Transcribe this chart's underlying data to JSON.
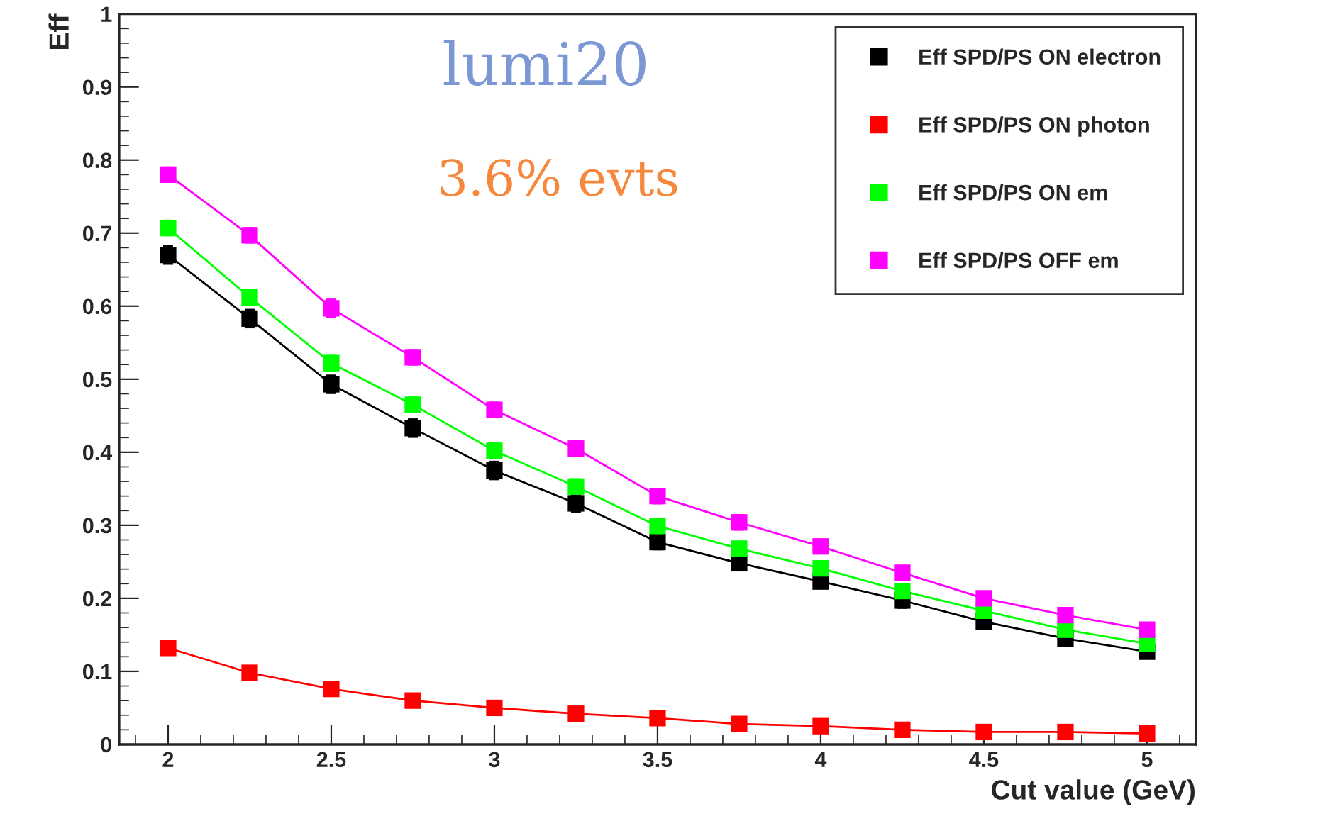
{
  "chart_data": {
    "type": "line",
    "xlabel": "Cut value (GeV)",
    "ylabel": "Eff",
    "x": [
      2,
      2.25,
      2.5,
      2.75,
      3,
      3.25,
      3.5,
      3.75,
      4,
      4.25,
      4.5,
      4.75,
      5
    ],
    "series": [
      {
        "name": "Eff SPD/PS ON electron",
        "color": "#000000",
        "values": [
          0.67,
          0.583,
          0.493,
          0.433,
          0.375,
          0.33,
          0.277,
          0.248,
          0.223,
          0.197,
          0.168,
          0.145,
          0.127
        ],
        "errors": [
          0.012,
          0.012,
          0.012,
          0.012,
          0.012,
          0.012,
          0.01,
          0.008,
          0.008,
          0.01,
          0.006,
          0.005,
          0.005
        ]
      },
      {
        "name": "Eff SPD/PS ON photon",
        "color": "#ff0000",
        "values": [
          0.132,
          0.098,
          0.076,
          0.06,
          0.05,
          0.042,
          0.036,
          0.028,
          0.025,
          0.02,
          0.017,
          0.017,
          0.015
        ]
      },
      {
        "name": "Eff SPD/PS ON em",
        "color": "#00ff00",
        "values": [
          0.707,
          0.612,
          0.522,
          0.465,
          0.402,
          0.353,
          0.299,
          0.268,
          0.241,
          0.21,
          0.183,
          0.157,
          0.138
        ],
        "errors": [
          0.01,
          0.01,
          0.01,
          0.01,
          0.01,
          0.01,
          0.008,
          0.008,
          0.008,
          0.008,
          0.006,
          0.005,
          0.005
        ]
      },
      {
        "name": "Eff SPD/PS OFF em",
        "color": "#ff00ff",
        "values": [
          0.78,
          0.697,
          0.597,
          0.53,
          0.458,
          0.405,
          0.34,
          0.304,
          0.271,
          0.235,
          0.2,
          0.177,
          0.157
        ],
        "errors": [
          0.01,
          0.01,
          0.012,
          0.01,
          0.01,
          0.01,
          0.01,
          0.01,
          0.008,
          0.008,
          0.006,
          0.006,
          0.005
        ]
      }
    ],
    "xlim": [
      1.85,
      5.15
    ],
    "xticks": [
      2,
      2.5,
      3,
      3.5,
      4,
      4.5,
      5
    ],
    "ylim": [
      0,
      1
    ],
    "yticks": [
      0,
      0.1,
      0.2,
      0.3,
      0.4,
      0.5,
      0.6,
      0.7,
      0.8,
      0.9,
      1
    ],
    "annotations": [
      "lumi20",
      "3.6% evts"
    ],
    "legend": "top right",
    "marker": "square",
    "line_style": "solid",
    "grid": false
  }
}
